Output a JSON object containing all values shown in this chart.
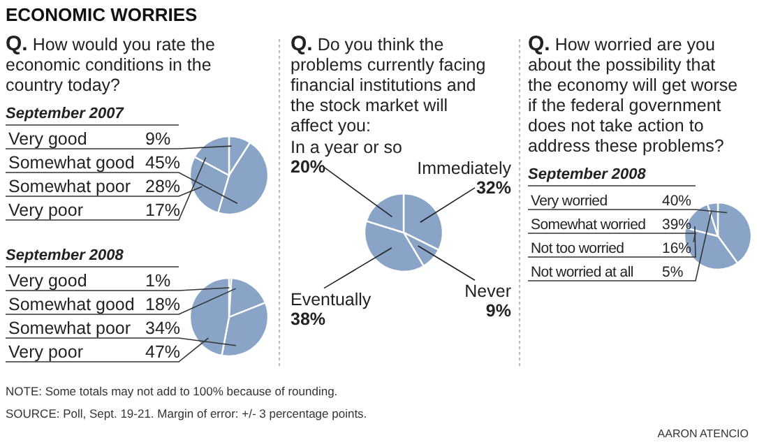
{
  "chart_data": [
    {
      "type": "other",
      "title": "ECONOMIC WORRIES",
      "annotations": [
        "NOTE: Some totals may not add to 100% because of rounding.",
        "SOURCE: Poll, Sept. 19-21. Margin of error: +/- 3 percentage points.",
        "AARON ATENCIO"
      ]
    },
    {
      "type": "pie",
      "title": "Q. How would you rate the economic conditions in the country today?",
      "subtitle": "September 2007",
      "categories": [
        "Very good",
        "Somewhat good",
        "Somewhat poor",
        "Very poor"
      ],
      "values": [
        9,
        45,
        28,
        17
      ],
      "value_labels": [
        "9%",
        "45%",
        "28%",
        "17%"
      ],
      "colors": [
        "#8aa4c8",
        "#8aa4c8",
        "#8aa4c8",
        "#8aa4c8"
      ]
    },
    {
      "type": "pie",
      "subtitle": "September 2008",
      "categories": [
        "Very good",
        "Somewhat good",
        "Somewhat poor",
        "Very poor"
      ],
      "values": [
        1,
        18,
        34,
        47
      ],
      "value_labels": [
        "1%",
        "18%",
        "34%",
        "47%"
      ],
      "colors": [
        "#8aa4c8",
        "#8aa4c8",
        "#8aa4c8",
        "#8aa4c8"
      ]
    },
    {
      "type": "pie",
      "title": "Q. Do you think the problems currently facing financial institutions and the stock market will affect you:",
      "categories": [
        "Immediately",
        "Never",
        "Eventually",
        "In a year or so"
      ],
      "values": [
        32,
        9,
        38,
        20
      ],
      "value_labels": [
        "32%",
        "9%",
        "38%",
        "20%"
      ],
      "colors": [
        "#8aa4c8",
        "#8aa4c8",
        "#8aa4c8",
        "#8aa4c8"
      ]
    },
    {
      "type": "pie",
      "title": "Q. How worried are you about the possibility that the economy will get worse if the federal government does not take action to address these problems?",
      "subtitle": "September 2008",
      "categories": [
        "Very worried",
        "Somewhat worried",
        "Not too worried",
        "Not worried at all"
      ],
      "values": [
        40,
        39,
        16,
        5
      ],
      "value_labels": [
        "40%",
        "39%",
        "16%",
        "5%"
      ],
      "colors": [
        "#8aa4c8",
        "#8aa4c8",
        "#8aa4c8",
        "#8aa4c8"
      ]
    }
  ]
}
